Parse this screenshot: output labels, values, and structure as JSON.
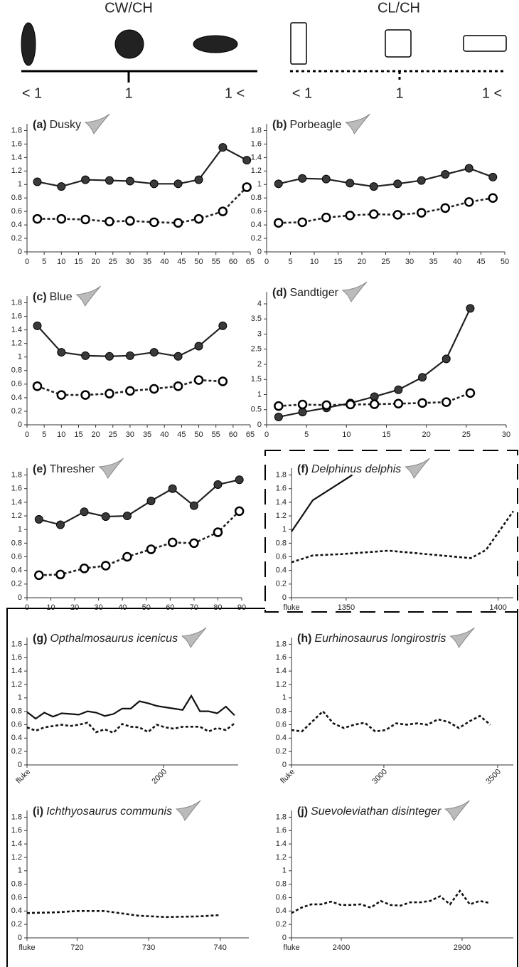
{
  "header": {
    "left": {
      "title": "CW/CH",
      "labels": [
        "< 1",
        "1",
        "1 <"
      ]
    },
    "right": {
      "title": "CL/CH",
      "labels": [
        "< 1",
        "1",
        "1 <"
      ]
    }
  },
  "chart_data": [
    {
      "type": "line",
      "label": "(a)",
      "title": "Dusky",
      "italic": false,
      "xlim": [
        0,
        65
      ],
      "xticks": [
        0,
        5,
        10,
        15,
        20,
        25,
        30,
        35,
        40,
        45,
        50,
        55,
        60,
        65
      ],
      "ylim": [
        0,
        1.9
      ],
      "yticks": [
        0,
        0.2,
        0.4,
        0.6,
        0.8,
        1,
        1.2,
        1.4,
        1.6,
        1.8
      ],
      "color": "#222222",
      "series": [
        {
          "style": "solid",
          "marker": "filled",
          "x": [
            3,
            10,
            17,
            24,
            30,
            37,
            44,
            50,
            57,
            64
          ],
          "values": [
            1.04,
            0.97,
            1.07,
            1.06,
            1.05,
            1.01,
            1.01,
            1.07,
            1.55,
            1.36
          ]
        },
        {
          "style": "dashed",
          "marker": "open",
          "x": [
            3,
            10,
            17,
            24,
            30,
            37,
            44,
            50,
            57,
            64
          ],
          "values": [
            0.49,
            0.49,
            0.48,
            0.45,
            0.46,
            0.44,
            0.43,
            0.49,
            0.6,
            0.96
          ]
        }
      ]
    },
    {
      "type": "line",
      "label": "(b)",
      "title": "Porbeagle",
      "italic": false,
      "xlim": [
        0,
        50
      ],
      "xticks": [
        0,
        5,
        10,
        15,
        20,
        25,
        30,
        35,
        40,
        45,
        50
      ],
      "ylim": [
        0,
        1.9
      ],
      "yticks": [
        0,
        0.2,
        0.4,
        0.6,
        0.8,
        1,
        1.2,
        1.4,
        1.6,
        1.8
      ],
      "color": "#222222",
      "series": [
        {
          "style": "solid",
          "marker": "filled",
          "x": [
            2.5,
            7.5,
            12.5,
            17.5,
            22.5,
            27.5,
            32.5,
            37.5,
            42.5,
            47.5
          ],
          "values": [
            1.01,
            1.09,
            1.08,
            1.02,
            0.97,
            1.01,
            1.06,
            1.15,
            1.24,
            1.11
          ]
        },
        {
          "style": "dashed",
          "marker": "open",
          "x": [
            2.5,
            7.5,
            12.5,
            17.5,
            22.5,
            27.5,
            32.5,
            37.5,
            42.5,
            47.5
          ],
          "values": [
            0.43,
            0.44,
            0.51,
            0.54,
            0.56,
            0.55,
            0.58,
            0.65,
            0.74,
            0.8
          ]
        }
      ]
    },
    {
      "type": "line",
      "label": "(c)",
      "title": "Blue",
      "italic": false,
      "xlim": [
        0,
        65
      ],
      "xticks": [
        0,
        5,
        10,
        15,
        20,
        25,
        30,
        35,
        40,
        45,
        50,
        55,
        60,
        65
      ],
      "ylim": [
        0,
        1.9
      ],
      "yticks": [
        0,
        0.2,
        0.4,
        0.6,
        0.8,
        1,
        1.2,
        1.4,
        1.6,
        1.8
      ],
      "color": "#222222",
      "series": [
        {
          "style": "solid",
          "marker": "filled",
          "x": [
            3,
            10,
            17,
            24,
            30,
            37,
            44,
            50,
            57
          ],
          "values": [
            1.46,
            1.07,
            1.02,
            1.01,
            1.02,
            1.07,
            1.01,
            1.16,
            1.46
          ]
        },
        {
          "style": "dashed",
          "marker": "open",
          "x": [
            3,
            10,
            17,
            24,
            30,
            37,
            44,
            50,
            57
          ],
          "values": [
            0.57,
            0.44,
            0.44,
            0.46,
            0.5,
            0.53,
            0.57,
            0.66,
            0.64
          ]
        }
      ]
    },
    {
      "type": "line",
      "label": "(d)",
      "title": "Sandtiger",
      "italic": false,
      "xlim": [
        0,
        30
      ],
      "xticks": [
        0,
        5,
        10,
        15,
        20,
        25,
        30
      ],
      "ylim": [
        0,
        4.4
      ],
      "yticks": [
        0,
        0.5,
        1,
        1.5,
        2,
        2.5,
        3,
        3.5,
        4
      ],
      "color": "#222222",
      "series": [
        {
          "style": "solid",
          "marker": "filled",
          "x": [
            1.5,
            4.5,
            7.5,
            10.5,
            13.5,
            16.5,
            19.5,
            22.5,
            25.5
          ],
          "values": [
            0.26,
            0.42,
            0.56,
            0.72,
            0.93,
            1.16,
            1.57,
            2.18,
            3.85
          ]
        },
        {
          "style": "dashed",
          "marker": "open",
          "x": [
            1.5,
            4.5,
            7.5,
            10.5,
            13.5,
            16.5,
            19.5,
            22.5,
            25.5
          ],
          "values": [
            0.62,
            0.67,
            0.65,
            0.67,
            0.68,
            0.7,
            0.72,
            0.75,
            1.05
          ]
        }
      ]
    },
    {
      "type": "line",
      "label": "(e)",
      "title": "Thresher",
      "italic": false,
      "xlim": [
        0,
        90
      ],
      "xticks": [
        0,
        10,
        20,
        30,
        40,
        50,
        60,
        70,
        80,
        90
      ],
      "ylim": [
        0,
        1.9
      ],
      "yticks": [
        0,
        0.2,
        0.4,
        0.6,
        0.8,
        1,
        1.2,
        1.4,
        1.6,
        1.8
      ],
      "color": "#222222",
      "series": [
        {
          "style": "solid",
          "marker": "filled",
          "x": [
            5,
            14,
            24,
            33,
            42,
            52,
            61,
            70,
            80,
            89
          ],
          "values": [
            1.15,
            1.07,
            1.26,
            1.19,
            1.2,
            1.42,
            1.6,
            1.35,
            1.66,
            1.73
          ]
        },
        {
          "style": "dashed",
          "marker": "open",
          "x": [
            5,
            14,
            24,
            33,
            42,
            52,
            61,
            70,
            80,
            89
          ],
          "values": [
            0.33,
            0.34,
            0.43,
            0.47,
            0.6,
            0.71,
            0.81,
            0.8,
            0.96,
            1.27
          ]
        }
      ]
    },
    {
      "type": "line",
      "label": "(f)",
      "title": "Delphinus delphis",
      "italic": true,
      "xlim": [
        1332,
        1405
      ],
      "xticks": [
        {
          "value": 1332,
          "label": "fluke"
        },
        1350,
        1400
      ],
      "ylim": [
        0,
        1.9
      ],
      "yticks": [
        0,
        0.2,
        0.4,
        0.6,
        0.8,
        1,
        1.2,
        1.4,
        1.6,
        1.8
      ],
      "color": "#111111",
      "series": [
        {
          "style": "solid",
          "marker": "none",
          "x": [
            1332,
            1339,
            1352
          ],
          "values": [
            0.97,
            1.43,
            1.8
          ]
        },
        {
          "style": "dashed",
          "marker": "none",
          "x": [
            1332,
            1339,
            1348.5,
            1364,
            1391,
            1396,
            1405
          ],
          "values": [
            0.52,
            0.62,
            0.64,
            0.69,
            0.58,
            0.7,
            1.27
          ]
        }
      ]
    },
    {
      "type": "line",
      "label": "(g)",
      "title": "Opthalmosaurus icenicus",
      "italic": true,
      "rotated_xticks": true,
      "xlim": [
        1700,
        2164
      ],
      "xticks": [
        {
          "value": 1700,
          "label": "fluke"
        },
        2000
      ],
      "ylim": [
        0,
        1.9
      ],
      "yticks": [
        0,
        0.2,
        0.4,
        0.6,
        0.8,
        1,
        1.2,
        1.4,
        1.6,
        1.8
      ],
      "color": "#111111",
      "series": [
        {
          "style": "solid",
          "marker": "none",
          "x": [
            1700,
            1719,
            1738,
            1757,
            1776,
            1795,
            1814,
            1833,
            1852,
            1871,
            1890,
            1909,
            1928,
            1947,
            1966,
            1985,
            2004,
            2023,
            2042,
            2061,
            2080,
            2099,
            2118,
            2137,
            2156
          ],
          "values": [
            0.79,
            0.69,
            0.78,
            0.72,
            0.77,
            0.76,
            0.75,
            0.8,
            0.78,
            0.73,
            0.76,
            0.84,
            0.84,
            0.95,
            0.92,
            0.88,
            0.86,
            0.84,
            0.82,
            1.03,
            0.8,
            0.8,
            0.77,
            0.87,
            0.74
          ]
        },
        {
          "style": "dashed",
          "marker": "none",
          "x": [
            1700,
            1719,
            1738,
            1757,
            1776,
            1795,
            1814,
            1833,
            1852,
            1871,
            1890,
            1909,
            1928,
            1947,
            1966,
            1985,
            2004,
            2023,
            2042,
            2061,
            2080,
            2099,
            2118,
            2137,
            2156
          ],
          "values": [
            0.56,
            0.51,
            0.56,
            0.58,
            0.6,
            0.58,
            0.6,
            0.63,
            0.49,
            0.53,
            0.48,
            0.61,
            0.57,
            0.56,
            0.49,
            0.6,
            0.56,
            0.54,
            0.57,
            0.57,
            0.57,
            0.5,
            0.55,
            0.52,
            0.62
          ]
        }
      ]
    },
    {
      "type": "line",
      "label": "(h)",
      "title": "Eurhinosaurus longirostris",
      "italic": true,
      "rotated_xticks": true,
      "xlim": [
        2594,
        3569
      ],
      "xticks": [
        {
          "value": 2594,
          "label": "fluke"
        },
        3000,
        3500
      ],
      "ylim": [
        0,
        1.9
      ],
      "yticks": [
        0,
        0.2,
        0.4,
        0.6,
        0.8,
        1,
        1.2,
        1.4,
        1.6,
        1.8
      ],
      "color": "#111111",
      "series": [
        {
          "style": "dashed",
          "marker": "none",
          "x": [
            2594,
            2640,
            2686,
            2732,
            2778,
            2824,
            2870,
            2916,
            2962,
            3008,
            3054,
            3100,
            3146,
            3192,
            3238,
            3284,
            3330,
            3376,
            3422,
            3468
          ],
          "values": [
            0.52,
            0.5,
            0.65,
            0.8,
            0.62,
            0.55,
            0.6,
            0.63,
            0.5,
            0.52,
            0.62,
            0.6,
            0.62,
            0.6,
            0.68,
            0.64,
            0.55,
            0.65,
            0.73,
            0.6
          ]
        }
      ]
    },
    {
      "type": "line",
      "label": "(i)",
      "title": "Ichthyosaurus communis",
      "italic": true,
      "xlim": [
        713,
        744
      ],
      "xticks": [
        {
          "value": 713,
          "label": "fluke"
        },
        720,
        730,
        740
      ],
      "ylim": [
        0,
        1.9
      ],
      "yticks": [
        0,
        0.2,
        0.4,
        0.6,
        0.8,
        1,
        1.2,
        1.4,
        1.6,
        1.8
      ],
      "color": "#111111",
      "series": [
        {
          "style": "dashed",
          "marker": "none",
          "x": [
            713,
            717,
            720,
            723.8,
            728.6,
            732.4,
            737.1,
            740
          ],
          "values": [
            0.37,
            0.38,
            0.4,
            0.4,
            0.33,
            0.31,
            0.32,
            0.34
          ]
        }
      ]
    },
    {
      "type": "line",
      "label": "(j)",
      "title": "Suevoleviathan disinteger",
      "italic": true,
      "xlim": [
        2194,
        3112
      ],
      "xticks": [
        {
          "value": 2194,
          "label": "fluke"
        },
        2400,
        2900
      ],
      "ylim": [
        0,
        1.9
      ],
      "yticks": [
        0,
        0.2,
        0.4,
        0.6,
        0.8,
        1,
        1.2,
        1.4,
        1.6,
        1.8
      ],
      "color": "#111111",
      "series": [
        {
          "style": "dashed",
          "marker": "none",
          "x": [
            2194,
            2235,
            2276,
            2317,
            2358,
            2399,
            2440,
            2481,
            2522,
            2563,
            2604,
            2645,
            2686,
            2727,
            2768,
            2809,
            2850,
            2891,
            2932,
            2973,
            3014
          ],
          "values": [
            0.37,
            0.45,
            0.5,
            0.5,
            0.54,
            0.49,
            0.49,
            0.5,
            0.45,
            0.55,
            0.49,
            0.48,
            0.53,
            0.53,
            0.55,
            0.62,
            0.5,
            0.7,
            0.5,
            0.55,
            0.52
          ]
        }
      ]
    }
  ]
}
